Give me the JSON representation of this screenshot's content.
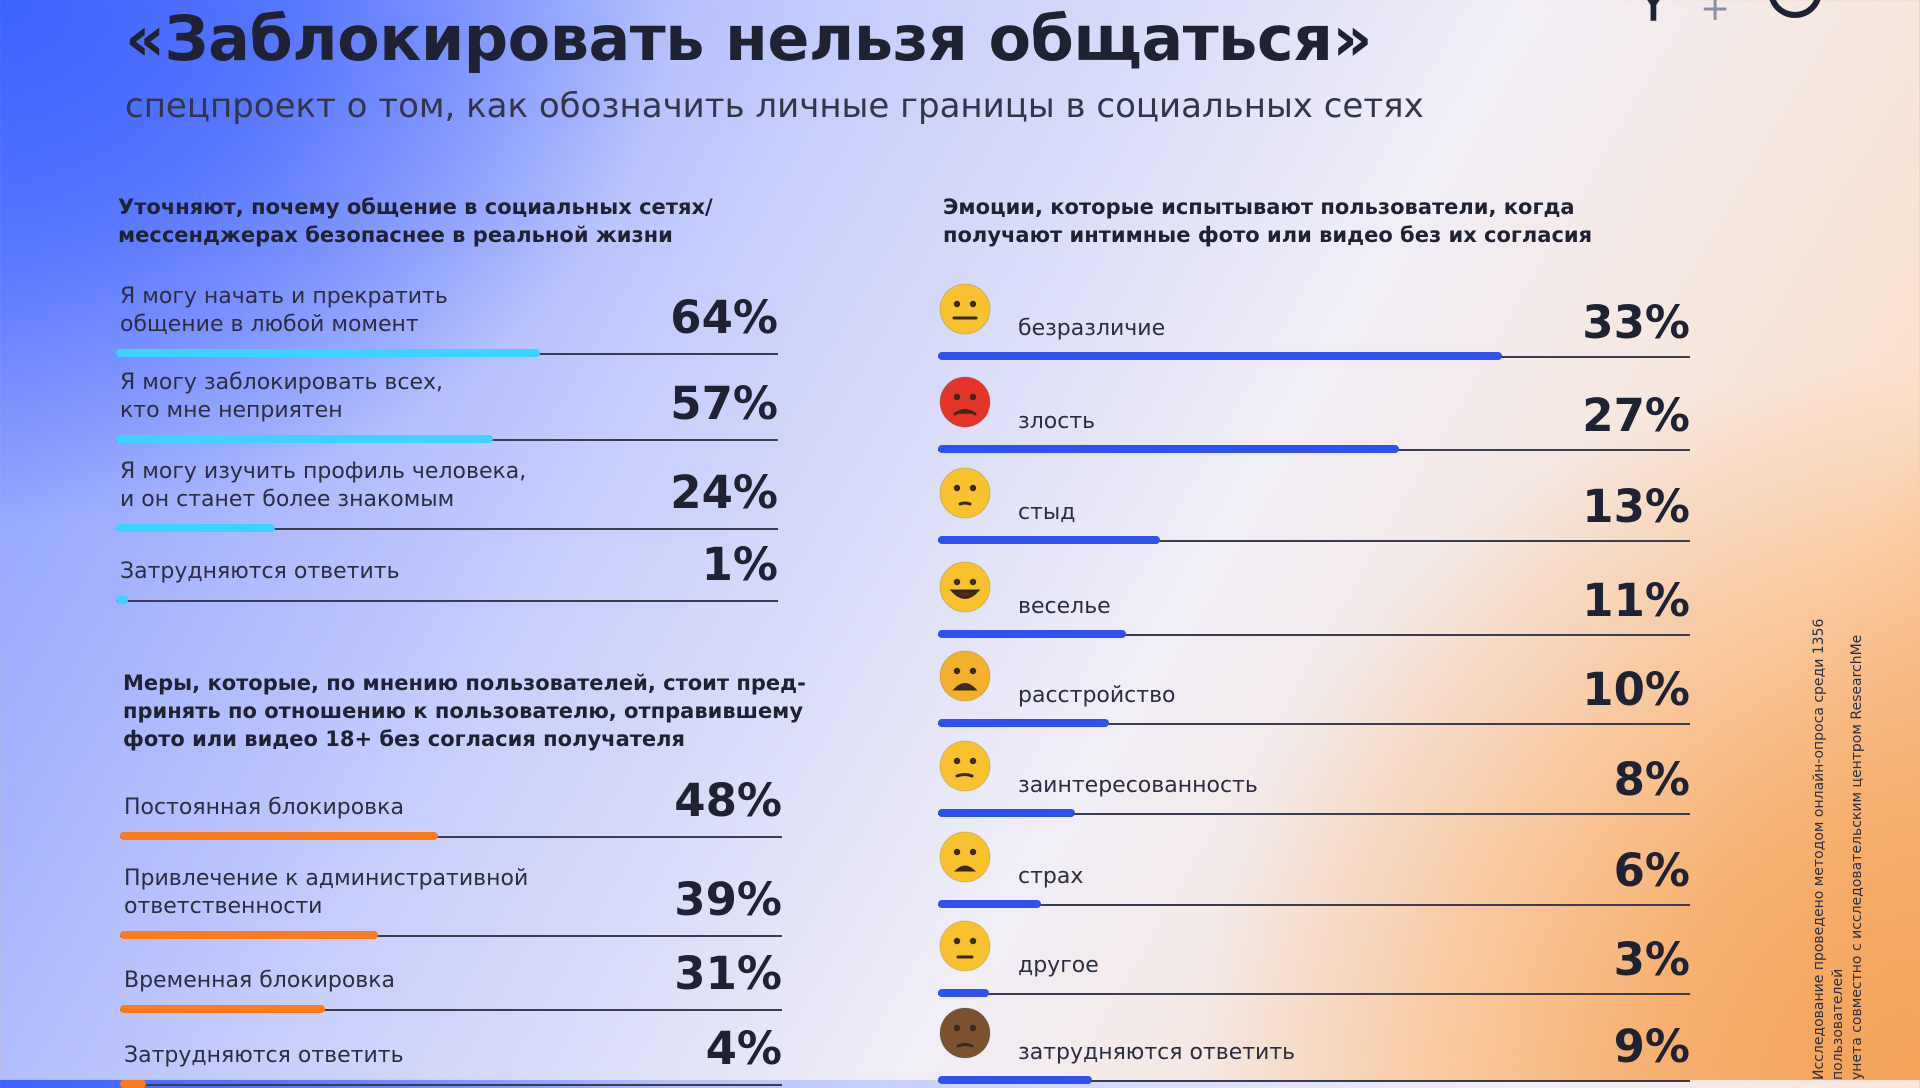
{
  "header": {
    "title": "«Заблокировать нельзя общаться»",
    "subtitle": "спецпроект о том, как обозначить личные границы в социальных сетях"
  },
  "logos": {
    "ok": "ok-logo",
    "plus": "+",
    "shield": "shield-logo"
  },
  "side_note": "Исследование проведено методом онлайн-опроса среди 1356 пользователей\nунета совместно с исследовательским центром ResearchMe",
  "colors": {
    "cyan": "#3fd2ff",
    "orange": "#ff7a1a",
    "blue": "#3050f0",
    "axis": "#3a3d4f"
  },
  "chart_data": [
    {
      "type": "bar",
      "title": "Уточняют, почему общение в социальных сетях/\nмессенджерах безопаснее в реальной жизни",
      "categories": [
        "Я могу начать и прекратить\nобщение в любой момент",
        "Я могу заблокировать всех,\nкто мне неприятен",
        "Я могу изучить профиль человека,\nи он станет более знакомым",
        "Затрудняются ответить"
      ],
      "values": [
        64,
        57,
        24,
        1
      ],
      "value_labels": [
        "64%",
        "57%",
        "24%",
        "1%"
      ],
      "color": "#3fd2ff",
      "ylim": [
        0,
        100
      ]
    },
    {
      "type": "bar",
      "title": "Меры, которые, по мнению пользователей, стоит пред-\nпринять по отношению к пользователю, отправившему\nфото или видео 18+ без согласия получателя",
      "categories": [
        "Постоянная блокировка",
        "Привлечение к административной\nответственности",
        "Временная блокировка",
        "Затрудняются ответить"
      ],
      "values": [
        48,
        39,
        31,
        4
      ],
      "value_labels": [
        "48%",
        "39%",
        "31%",
        "4%"
      ],
      "color": "#ff7a1a",
      "ylim": [
        0,
        100
      ]
    },
    {
      "type": "bar",
      "title": "Эмоции, которые испытывают пользователи, когда\nполучают интимные фото или видео без их согласия",
      "categories": [
        "безразличие",
        "злость",
        "стыд",
        "веселье",
        "расстройство",
        "заинтересованность",
        "страх",
        "другое",
        "затрудняются ответить"
      ],
      "icons": [
        "neutral-face-icon",
        "angry-face-icon",
        "flushed-face-icon",
        "laughing-face-icon",
        "weary-face-icon",
        "thinking-face-icon",
        "fearful-face-icon",
        "eye-roll-face-icon",
        "see-no-evil-monkey-icon"
      ],
      "values": [
        33,
        27,
        13,
        11,
        10,
        8,
        6,
        3,
        9
      ],
      "value_labels": [
        "33%",
        "27%",
        "13%",
        "11%",
        "10%",
        "8%",
        "6%",
        "3%",
        "9%"
      ],
      "color": "#3050f0",
      "ylim": [
        0,
        44
      ]
    }
  ]
}
